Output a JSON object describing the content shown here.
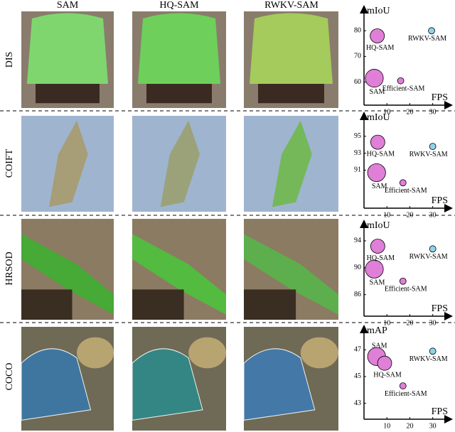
{
  "columns": [
    "SAM",
    "HQ-SAM",
    "RWKV-SAM"
  ],
  "rows": [
    "DIS",
    "COIFT",
    "HRSOD",
    "COCO"
  ],
  "chart_data": [
    {
      "type": "scatter",
      "ylabel": "mIoU",
      "xlabel": "FPS",
      "categories": [
        "SAM",
        "HQ-SAM",
        "Efficient-SAM",
        "RWKV-SAM"
      ],
      "x": [
        4.5,
        5.8,
        16,
        29.5
      ],
      "values": [
        61.5,
        78,
        60.5,
        80
      ],
      "sizes": [
        160,
        100,
        20,
        20
      ],
      "colors": [
        "#e07fd8",
        "#e07fd8",
        "#e07fd8",
        "#8fd3ea"
      ],
      "xlim": [
        0,
        36
      ],
      "xticks": [
        10,
        20,
        30
      ],
      "ylim": [
        51,
        87
      ],
      "yticks": [
        60,
        70,
        80
      ]
    },
    {
      "type": "scatter",
      "ylabel": "mIoU",
      "xlabel": "FPS",
      "categories": [
        "SAM",
        "HQ-SAM",
        "Efficient-SAM",
        "RWKV-SAM"
      ],
      "x": [
        5.5,
        6,
        17,
        30
      ],
      "values": [
        90.7,
        94.3,
        89.5,
        93.8
      ],
      "sizes": [
        160,
        100,
        20,
        20
      ],
      "colors": [
        "#e07fd8",
        "#e07fd8",
        "#e07fd8",
        "#8fd3ea"
      ],
      "xlim": [
        0,
        36
      ],
      "xticks": [
        10,
        20,
        30
      ],
      "ylim": [
        86.5,
        97
      ],
      "yticks": [
        91,
        93,
        95
      ]
    },
    {
      "type": "scatter",
      "ylabel": "mIoU",
      "xlabel": "FPS",
      "categories": [
        "SAM",
        "HQ-SAM",
        "Efficient-SAM",
        "RWKV-SAM"
      ],
      "x": [
        4.5,
        6,
        17,
        30
      ],
      "values": [
        89.8,
        93.2,
        88,
        92.8
      ],
      "sizes": [
        160,
        100,
        20,
        20
      ],
      "colors": [
        "#e07fd8",
        "#e07fd8",
        "#e07fd8",
        "#8fd3ea"
      ],
      "xlim": [
        0,
        36
      ],
      "xticks": [
        10,
        20,
        30
      ],
      "ylim": [
        82.8,
        96
      ],
      "yticks": [
        86,
        90,
        94
      ]
    },
    {
      "type": "scatter",
      "ylabel": "mAP",
      "xlabel": "FPS",
      "categories": [
        "SAM",
        "HQ-SAM",
        "Efficient-SAM",
        "RWKV-SAM"
      ],
      "x": [
        5.5,
        9,
        17,
        30
      ],
      "values": [
        46.5,
        46,
        44.3,
        46.9
      ],
      "sizes": [
        160,
        100,
        20,
        20
      ],
      "colors": [
        "#e07fd8",
        "#e07fd8",
        "#e07fd8",
        "#8fd3ea"
      ],
      "xlim": [
        0,
        36
      ],
      "xticks": [
        10,
        20,
        30
      ],
      "ylim": [
        41.8,
        48.3
      ],
      "yticks": [
        43,
        45,
        47
      ]
    }
  ]
}
